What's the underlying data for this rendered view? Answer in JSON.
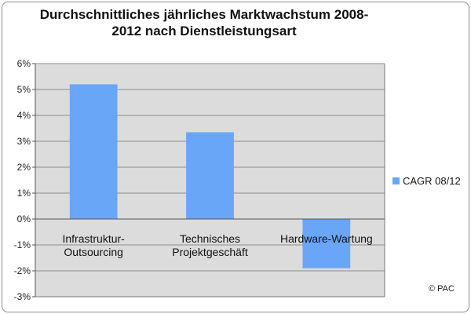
{
  "chart_data": {
    "type": "bar",
    "title": "Durchschnittliches jährliches Marktwachstum 2008-2012 nach Dienstleistungsart",
    "title_lines": [
      "Durchschnittliches jährliches Marktwachstum 2008-",
      "2012 nach Dienstleistungsart"
    ],
    "categories": [
      "Infrastruktur-Outsourcing",
      "Technisches Projektgeschäft",
      "Hardware-Wartung"
    ],
    "category_lines": [
      [
        "Infrastruktur-",
        "Outsourcing"
      ],
      [
        "Technisches",
        "Projektgeschäft"
      ],
      [
        "Hardware-Wartung"
      ]
    ],
    "series": [
      {
        "name": "CAGR 08/12",
        "values": [
          5.2,
          3.35,
          -1.9
        ]
      }
    ],
    "ylim": [
      -3,
      6
    ],
    "yticks": [
      -3,
      -2,
      -1,
      0,
      1,
      2,
      3,
      4,
      5,
      6
    ],
    "ytick_labels": [
      "-3%",
      "-2%",
      "-1%",
      "0%",
      "1%",
      "2%",
      "3%",
      "4%",
      "5%",
      "6%"
    ],
    "grid": true,
    "legend_position": "right",
    "colors": {
      "bar": "#6aa6f8",
      "plot_background": "#dcdcdc",
      "grid": "#8c8c8c"
    }
  },
  "copyright": "© PAC"
}
